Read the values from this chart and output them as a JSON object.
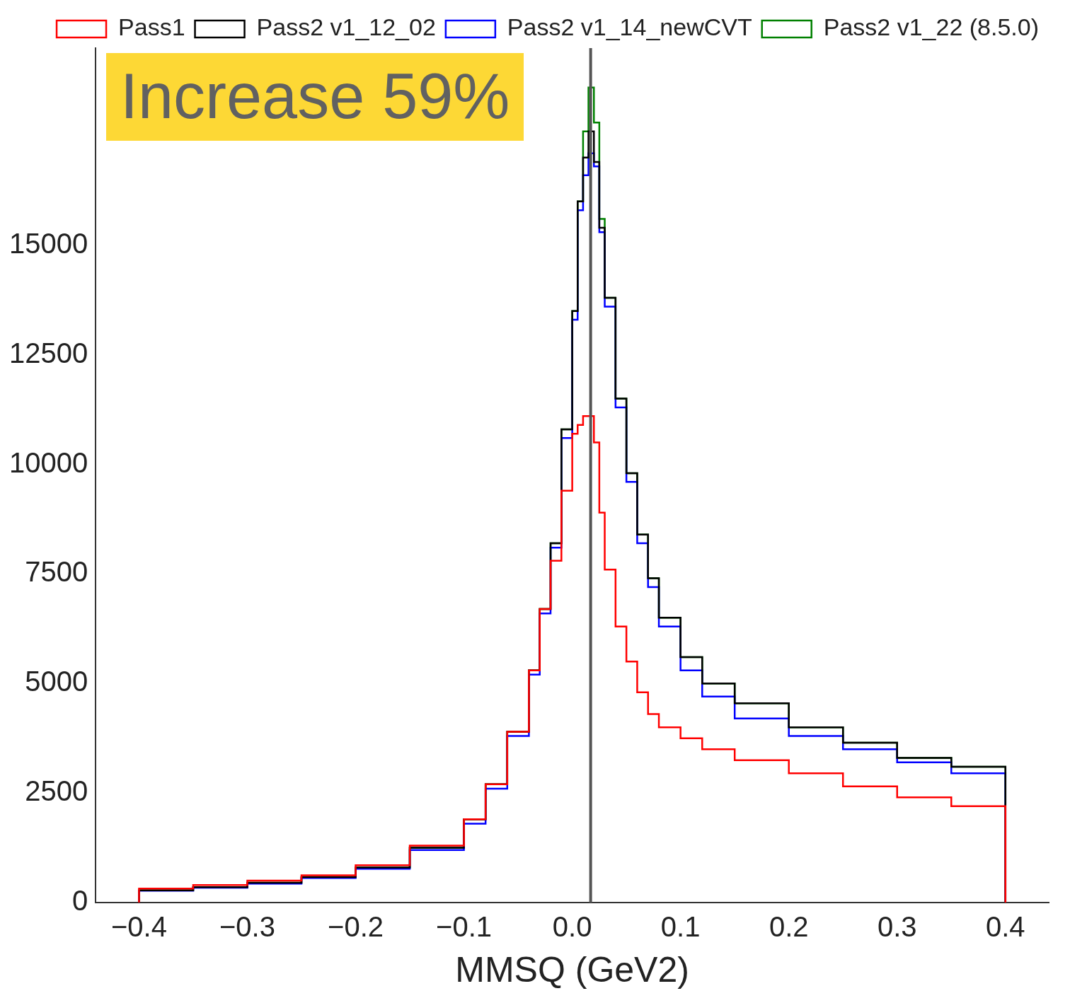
{
  "chart_data": {
    "type": "histogram",
    "xlabel": "MMSQ (GeV2)",
    "annotations": [
      "Increase 59%"
    ],
    "bins": [
      -0.4,
      -0.35,
      -0.3,
      -0.25,
      -0.2,
      -0.15,
      -0.1,
      -0.08,
      -0.06,
      -0.04,
      -0.03,
      -0.02,
      -0.01,
      0,
      0.005,
      0.01,
      0.015,
      0.02,
      0.025,
      0.03,
      0.04,
      0.05,
      0.06,
      0.07,
      0.08,
      0.1,
      0.12,
      0.15,
      0.2,
      0.25,
      0.3,
      0.35,
      0.4
    ],
    "series": [
      {
        "name": "Pass1",
        "color": "#ff0000",
        "values": [
          320,
          400,
          500,
          620,
          850,
          1300,
          1900,
          2700,
          3900,
          5300,
          6700,
          7800,
          9400,
          10700,
          10900,
          11100,
          11100,
          10500,
          8900,
          7600,
          6300,
          5500,
          4800,
          4300,
          4000,
          3750,
          3500,
          3250,
          2950,
          2650,
          2400,
          2200
        ]
      },
      {
        "name": "Pass2 v1_12_02",
        "color": "#000000",
        "values": [
          280,
          350,
          450,
          580,
          800,
          1250,
          1900,
          2700,
          3900,
          5300,
          6700,
          8200,
          10800,
          13500,
          16000,
          17000,
          17600,
          16900,
          15400,
          13800,
          11500,
          9800,
          8400,
          7400,
          6500,
          5600,
          5000,
          4550,
          4000,
          3650,
          3300,
          3100
        ]
      },
      {
        "name": "Pass2 v1_14_newCVT",
        "color": "#0000ff",
        "values": [
          270,
          340,
          430,
          560,
          770,
          1200,
          1800,
          2600,
          3800,
          5200,
          6600,
          8100,
          10600,
          13300,
          15800,
          16600,
          17100,
          16800,
          15300,
          13600,
          11300,
          9600,
          8200,
          7200,
          6300,
          5300,
          4700,
          4200,
          3800,
          3500,
          3200,
          2950
        ]
      },
      {
        "name": "Pass2 v1_22 (8.5.0)",
        "color": "#008000",
        "values": [
          280,
          350,
          450,
          580,
          800,
          1250,
          1900,
          2700,
          3900,
          5300,
          6700,
          8200,
          10800,
          13500,
          16000,
          17600,
          18600,
          17800,
          15600,
          13800,
          11500,
          9800,
          8400,
          7400,
          6500,
          5600,
          5000,
          4550,
          4000,
          3650,
          3300,
          3100
        ]
      }
    ],
    "xlim": [
      -0.44,
      0.44
    ],
    "ylim": [
      0,
      19500
    ],
    "xticks": [
      {
        "value": -0.4,
        "label": "−0.4"
      },
      {
        "value": -0.3,
        "label": "−0.3"
      },
      {
        "value": -0.2,
        "label": "−0.2"
      },
      {
        "value": -0.1,
        "label": "−0.1"
      },
      {
        "value": 0,
        "label": "0.0"
      },
      0.1,
      0.2,
      0.3,
      0.4
    ],
    "yticks": [
      0,
      2500,
      5000,
      7500,
      10000,
      12500,
      15000
    ],
    "ref_lines": [
      {
        "axis": "x",
        "value": 0.017,
        "color": "#555555"
      }
    ],
    "legend": "top right",
    "grid": false
  }
}
